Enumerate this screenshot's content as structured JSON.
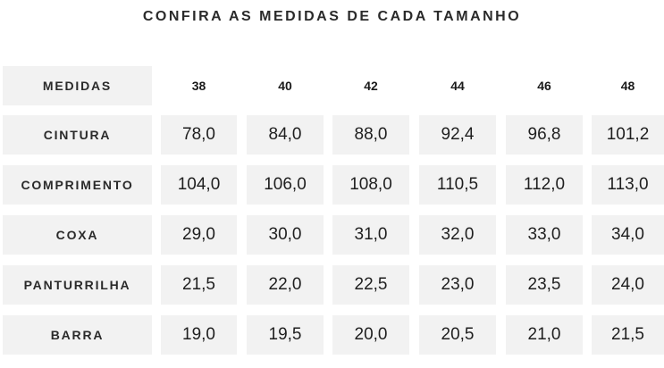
{
  "title": "CONFIRA AS MEDIDAS DE CADA TAMANHO",
  "header": {
    "label": "MEDIDAS",
    "sizes": [
      "38",
      "40",
      "42",
      "44",
      "46",
      "48"
    ]
  },
  "rows": [
    {
      "label": "CINTURA",
      "values": [
        "78,0",
        "84,0",
        "88,0",
        "92,4",
        "96,8",
        "101,2"
      ]
    },
    {
      "label": "COMPRIMENTO",
      "values": [
        "104,0",
        "106,0",
        "108,0",
        "110,5",
        "112,0",
        "113,0"
      ]
    },
    {
      "label": "COXA",
      "values": [
        "29,0",
        "30,0",
        "31,0",
        "32,0",
        "33,0",
        "34,0"
      ]
    },
    {
      "label": "PANTURRILHA",
      "values": [
        "21,5",
        "22,0",
        "22,5",
        "23,0",
        "23,5",
        "24,0"
      ]
    },
    {
      "label": "BARRA",
      "values": [
        "19,0",
        "19,5",
        "20,0",
        "20,5",
        "21,0",
        "21,5"
      ]
    }
  ]
}
